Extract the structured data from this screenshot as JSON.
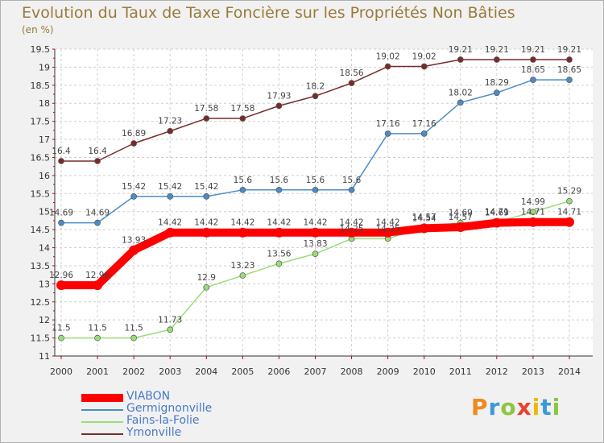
{
  "title": "Evolution du Taux de Taxe Foncière sur les Propriétés Non Bâties",
  "subtitle": "(en %)",
  "logo": {
    "letters": [
      "P",
      "r",
      "o",
      "x",
      "i",
      "t",
      "i"
    ],
    "colors": [
      "#f08a1c",
      "#3a9ad9",
      "#8cc63f",
      "#e8432e",
      "#f2b705",
      "#3a9ad9",
      "#8cc63f"
    ]
  },
  "chart_data": {
    "type": "line",
    "title": "Evolution du Taux de Taxe Foncière sur les Propriétés Non Bâties",
    "ylabel": "(en %)",
    "xlabel": "",
    "x": [
      "2000",
      "2001",
      "2002",
      "2003",
      "2004",
      "2005",
      "2006",
      "2007",
      "2008",
      "2009",
      "2010",
      "2011",
      "2012",
      "2013",
      "2014"
    ],
    "ylim": [
      11,
      19.5
    ],
    "yticks": [
      "11",
      "11.5",
      "12",
      "12.5",
      "13",
      "13.5",
      "14",
      "14.5",
      "15",
      "15.5",
      "16",
      "16.5",
      "17",
      "17.5",
      "18",
      "18.5",
      "19",
      "19.5"
    ],
    "grid": true,
    "legend_position": "bottom-left",
    "series": [
      {
        "name": "VIABON",
        "color": "#ff0000",
        "thick": true,
        "values": [
          12.96,
          12.96,
          13.93,
          14.42,
          14.42,
          14.42,
          14.42,
          14.42,
          14.42,
          14.42,
          14.54,
          14.57,
          14.69,
          14.71,
          14.71
        ],
        "labels": [
          "12.96",
          "12.96",
          "13.93",
          "14.42",
          "14.42",
          "14.42",
          "14.42",
          "14.42",
          "14.42",
          "14.42",
          "14.54",
          "14.57",
          "14.69",
          "14.71",
          "14.71"
        ]
      },
      {
        "name": "Germignonville",
        "color": "#4a8cc8",
        "thick": false,
        "values": [
          14.69,
          14.69,
          15.42,
          15.42,
          15.42,
          15.6,
          15.6,
          15.6,
          15.6,
          17.16,
          17.16,
          18.02,
          18.29,
          18.65,
          18.65
        ],
        "labels": [
          "14.69",
          "14.69",
          "15.42",
          "15.42",
          "15.42",
          "15.6",
          "15.6",
          "15.6",
          "15.6",
          "17.16",
          "17.16",
          "18.02",
          "18.29",
          "18.65",
          "18.65"
        ]
      },
      {
        "name": "Fains-la-Folie",
        "color": "#99dd77",
        "thick": false,
        "values": [
          11.5,
          11.5,
          11.5,
          11.73,
          12.9,
          13.23,
          13.56,
          13.83,
          14.25,
          14.25,
          14.57,
          14.69,
          14.71,
          14.99,
          15.29
        ],
        "labels": [
          "11.5",
          "11.5",
          "11.5",
          "11.73",
          "12.9",
          "13.23",
          "13.56",
          "13.83",
          "14.25",
          "14.25",
          "14.57",
          "14.69",
          "14.71",
          "14.99",
          "15.29"
        ]
      },
      {
        "name": "Ymonville",
        "color": "#7a2a2a",
        "thick": false,
        "values": [
          16.4,
          16.4,
          16.89,
          17.23,
          17.58,
          17.58,
          17.93,
          18.2,
          18.56,
          19.02,
          19.02,
          19.21,
          19.21,
          19.21,
          19.21
        ],
        "labels": [
          "16.4",
          "16.4",
          "16.89",
          "17.23",
          "17.58",
          "17.58",
          "17.93",
          "18.2",
          "18.56",
          "19.02",
          "19.02",
          "19.21",
          "19.21",
          "19.21",
          "19.21"
        ]
      }
    ]
  }
}
